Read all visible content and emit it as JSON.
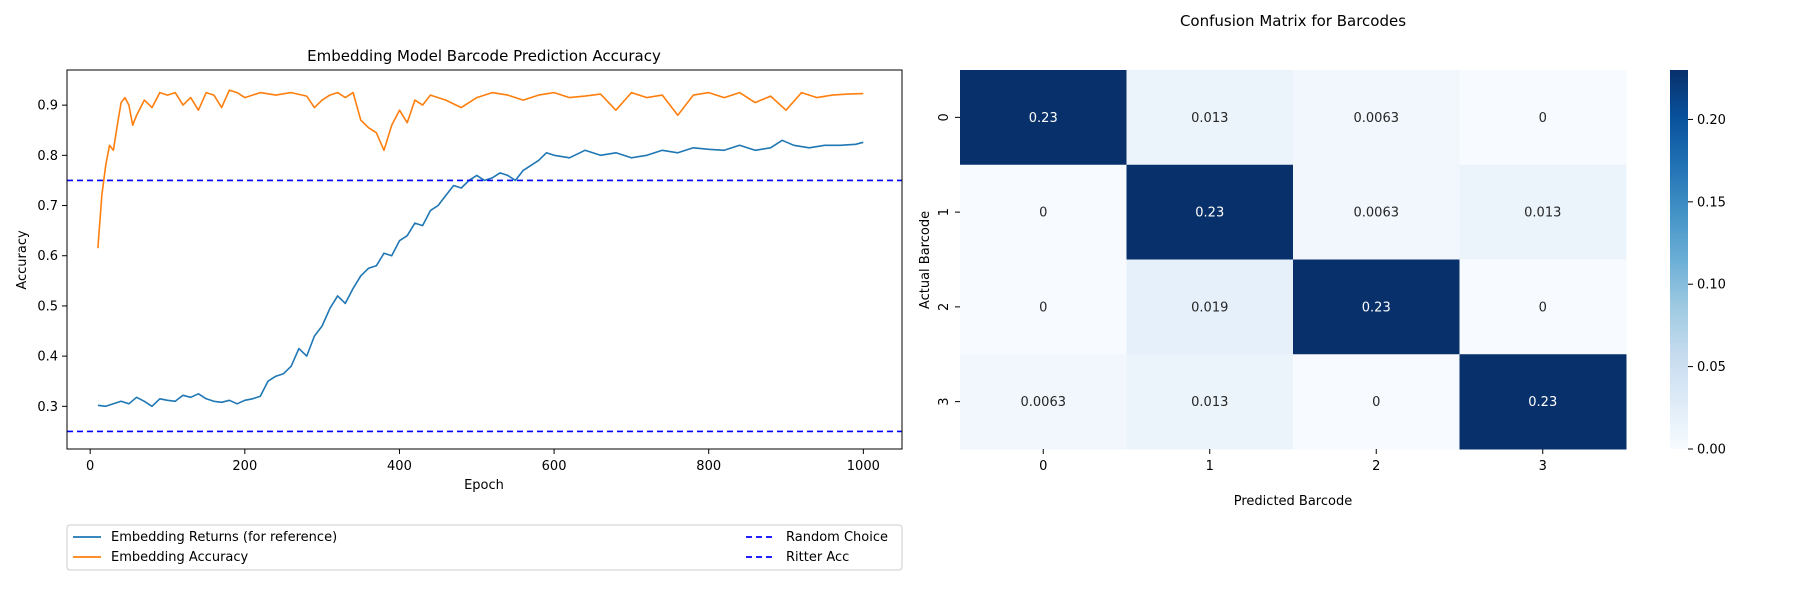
{
  "chart_data": [
    {
      "type": "line",
      "title": "Embedding Model Barcode Prediction Accuracy",
      "xlabel": "Epoch",
      "ylabel": "Accuracy",
      "xlim": [
        -30,
        1050
      ],
      "ylim": [
        0.215,
        0.97
      ],
      "xticks": [
        "0",
        "200",
        "400",
        "600",
        "800",
        "1000"
      ],
      "xtick_values": [
        0,
        200,
        400,
        600,
        800,
        1000
      ],
      "yticks": [
        "0.3",
        "0.4",
        "0.5",
        "0.6",
        "0.7",
        "0.8",
        "0.9"
      ],
      "ytick_values": [
        0.3,
        0.4,
        0.5,
        0.6,
        0.7,
        0.8,
        0.9
      ],
      "legend_position": "below",
      "series": [
        {
          "name": "Embedding Returns (for reference)",
          "color": "#1f77b4",
          "style": "solid",
          "x": [
            10,
            20,
            30,
            40,
            50,
            60,
            70,
            80,
            90,
            100,
            110,
            120,
            130,
            140,
            150,
            160,
            170,
            180,
            190,
            200,
            210,
            220,
            230,
            240,
            250,
            260,
            270,
            280,
            290,
            300,
            310,
            320,
            330,
            340,
            350,
            360,
            370,
            380,
            390,
            400,
            410,
            420,
            430,
            440,
            450,
            460,
            470,
            480,
            490,
            500,
            510,
            520,
            530,
            540,
            550,
            560,
            570,
            580,
            590,
            600,
            620,
            640,
            660,
            680,
            700,
            720,
            740,
            760,
            780,
            800,
            820,
            840,
            860,
            880,
            895,
            910,
            930,
            950,
            970,
            990,
            1000
          ],
          "y": [
            0.302,
            0.3,
            0.305,
            0.31,
            0.305,
            0.318,
            0.31,
            0.3,
            0.315,
            0.312,
            0.31,
            0.322,
            0.318,
            0.325,
            0.315,
            0.31,
            0.308,
            0.312,
            0.305,
            0.312,
            0.315,
            0.32,
            0.35,
            0.36,
            0.365,
            0.38,
            0.415,
            0.4,
            0.44,
            0.46,
            0.495,
            0.52,
            0.505,
            0.535,
            0.56,
            0.575,
            0.58,
            0.605,
            0.6,
            0.63,
            0.64,
            0.665,
            0.66,
            0.69,
            0.7,
            0.72,
            0.74,
            0.735,
            0.75,
            0.76,
            0.75,
            0.755,
            0.765,
            0.76,
            0.75,
            0.77,
            0.78,
            0.79,
            0.805,
            0.8,
            0.795,
            0.81,
            0.8,
            0.805,
            0.795,
            0.8,
            0.81,
            0.805,
            0.815,
            0.812,
            0.81,
            0.82,
            0.81,
            0.815,
            0.83,
            0.82,
            0.815,
            0.82,
            0.82,
            0.822,
            0.826
          ]
        },
        {
          "name": "Embedding Accuracy",
          "color": "#ff7f0e",
          "style": "solid",
          "x": [
            10,
            15,
            20,
            25,
            30,
            35,
            40,
            45,
            50,
            55,
            60,
            70,
            80,
            90,
            100,
            110,
            120,
            130,
            140,
            150,
            160,
            170,
            180,
            190,
            200,
            220,
            240,
            260,
            280,
            290,
            300,
            310,
            320,
            330,
            340,
            350,
            360,
            370,
            380,
            390,
            400,
            410,
            420,
            430,
            440,
            460,
            480,
            500,
            520,
            540,
            560,
            580,
            600,
            620,
            640,
            660,
            680,
            700,
            720,
            740,
            760,
            780,
            800,
            820,
            840,
            860,
            880,
            900,
            920,
            940,
            960,
            980,
            1000
          ],
          "y": [
            0.615,
            0.72,
            0.78,
            0.82,
            0.81,
            0.86,
            0.905,
            0.915,
            0.9,
            0.86,
            0.88,
            0.91,
            0.895,
            0.925,
            0.92,
            0.925,
            0.9,
            0.915,
            0.89,
            0.925,
            0.92,
            0.895,
            0.93,
            0.925,
            0.915,
            0.925,
            0.92,
            0.925,
            0.918,
            0.895,
            0.91,
            0.92,
            0.925,
            0.915,
            0.925,
            0.87,
            0.855,
            0.845,
            0.81,
            0.86,
            0.89,
            0.865,
            0.91,
            0.9,
            0.92,
            0.91,
            0.895,
            0.915,
            0.925,
            0.92,
            0.91,
            0.92,
            0.925,
            0.915,
            0.918,
            0.922,
            0.89,
            0.925,
            0.915,
            0.92,
            0.88,
            0.92,
            0.925,
            0.915,
            0.925,
            0.905,
            0.918,
            0.89,
            0.925,
            0.915,
            0.92,
            0.922,
            0.923
          ]
        },
        {
          "name": "Random Choice",
          "color": "#0000ff",
          "style": "dashed",
          "constant": 0.25
        },
        {
          "name": "Ritter Acc",
          "color": "#0000ff",
          "style": "dashed",
          "constant": 0.75
        }
      ]
    },
    {
      "type": "heatmap",
      "title": "Confusion Matrix for Barcodes",
      "xlabel": "Predicted Barcode",
      "ylabel": "Actual Barcode",
      "categories_x": [
        "0",
        "1",
        "2",
        "3"
      ],
      "categories_y": [
        "0",
        "1",
        "2",
        "3"
      ],
      "values": [
        [
          0.23,
          0.013,
          0.0063,
          0
        ],
        [
          0,
          0.23,
          0.0063,
          0.013
        ],
        [
          0,
          0.019,
          0.23,
          0
        ],
        [
          0.0063,
          0.013,
          0,
          0.23
        ]
      ],
      "labels": [
        [
          "0.23",
          "0.013",
          "0.0063",
          "0"
        ],
        [
          "0",
          "0.23",
          "0.0063",
          "0.013"
        ],
        [
          "0",
          "0.019",
          "0.23",
          "0"
        ],
        [
          "0.0063",
          "0.013",
          "0",
          "0.23"
        ]
      ],
      "colormap": "Blues",
      "colorbar_range": [
        0,
        0.23
      ],
      "colorbar_ticks": [
        "0.00",
        "0.05",
        "0.10",
        "0.15",
        "0.20"
      ],
      "colorbar_tick_values": [
        0,
        0.05,
        0.1,
        0.15,
        0.2
      ]
    }
  ]
}
